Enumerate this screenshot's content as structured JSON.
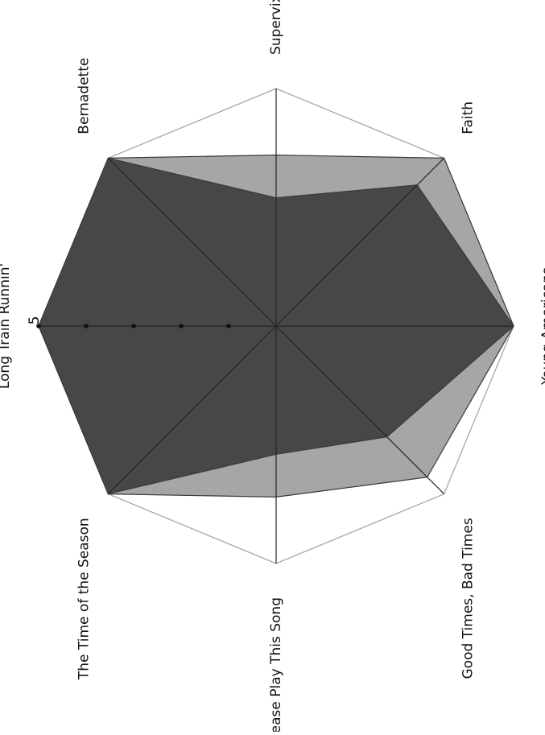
{
  "chart_data": {
    "type": "radar",
    "orientation": "rotated 90 degrees clockwise",
    "axes": [
      "Supervixen",
      "Faith",
      "Young Americans",
      "Good Times, Bad Times",
      "Please Play This Song",
      "The Time of the Season",
      "Long Train Runnin'",
      "Bernadette"
    ],
    "rlim": [
      0,
      5
    ],
    "ticks": [
      1,
      2,
      3,
      4,
      5
    ],
    "tick_labels": [
      "",
      "",
      "",
      "",
      "5"
    ],
    "grid": true,
    "series": [
      {
        "color": "#a6a6a6",
        "values": [
          3.6,
          5.0,
          5.0,
          4.5,
          3.6,
          5.0,
          5.0,
          5.0
        ]
      },
      {
        "color": "#474747",
        "values": [
          2.7,
          4.2,
          5.0,
          3.3,
          2.7,
          5.0,
          5.0,
          5.0
        ]
      }
    ]
  }
}
